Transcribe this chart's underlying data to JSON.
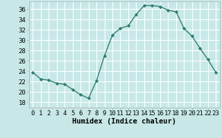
{
  "x": [
    0,
    1,
    2,
    3,
    4,
    5,
    6,
    7,
    8,
    9,
    10,
    11,
    12,
    13,
    14,
    15,
    16,
    17,
    18,
    19,
    20,
    21,
    22,
    23
  ],
  "y": [
    23.8,
    22.5,
    22.3,
    21.7,
    21.5,
    20.5,
    19.5,
    18.8,
    22.2,
    27.0,
    31.0,
    32.3,
    32.8,
    35.0,
    36.7,
    36.7,
    36.5,
    35.8,
    35.5,
    32.3,
    30.8,
    28.5,
    26.3,
    23.8
  ],
  "line_color": "#2e7d6e",
  "marker": "D",
  "marker_size": 2.2,
  "bg_color": "#c8e8e8",
  "grid_color": "#ffffff",
  "xlabel": "Humidex (Indice chaleur)",
  "ylim": [
    17,
    37.5
  ],
  "yticks": [
    18,
    20,
    22,
    24,
    26,
    28,
    30,
    32,
    34,
    36
  ],
  "xticks": [
    0,
    1,
    2,
    3,
    4,
    5,
    6,
    7,
    8,
    9,
    10,
    11,
    12,
    13,
    14,
    15,
    16,
    17,
    18,
    19,
    20,
    21,
    22,
    23
  ],
  "xlabel_fontsize": 7.5,
  "tick_fontsize": 6.5,
  "line_width": 1.0
}
